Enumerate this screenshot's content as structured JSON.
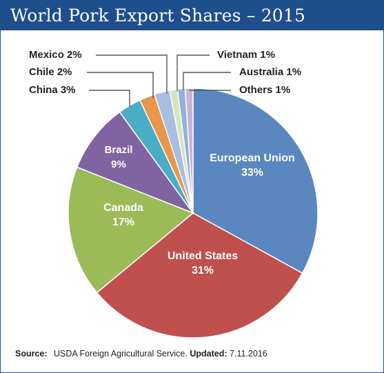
{
  "title": "World Pork Export Shares – 2015",
  "footer": {
    "source_label": "Source:",
    "source_text": "USDA Foreign Agricultural Service.",
    "updated_label": "Updated:",
    "updated_text": "7.11.2016"
  },
  "chart_data": {
    "type": "pie",
    "title": "World Pork Export Shares – 2015",
    "unit": "%",
    "slices": [
      {
        "name": "European Union",
        "value": 33,
        "label": "33%",
        "color": "#5a87bf"
      },
      {
        "name": "United States",
        "value": 31,
        "label": "31%",
        "color": "#c0504d"
      },
      {
        "name": "Canada",
        "value": 17,
        "label": "17%",
        "color": "#9bbb59"
      },
      {
        "name": "Brazil",
        "value": 9,
        "label": "9%",
        "color": "#8064a2"
      },
      {
        "name": "China",
        "value": 3,
        "label": "3%",
        "color": "#4bacc6"
      },
      {
        "name": "Chile",
        "value": 2,
        "label": "2%",
        "color": "#e8974a"
      },
      {
        "name": "Mexico",
        "value": 2,
        "label": "2%",
        "color": "#a9bde0"
      },
      {
        "name": "Vietnam",
        "value": 1,
        "label": "1%",
        "color": "#d7e4bd"
      },
      {
        "name": "Australia",
        "value": 1,
        "label": "1%",
        "color": "#8fb3d9"
      },
      {
        "name": "Others",
        "value": 1,
        "label": "1%",
        "color": "#c9b3d6"
      }
    ]
  }
}
